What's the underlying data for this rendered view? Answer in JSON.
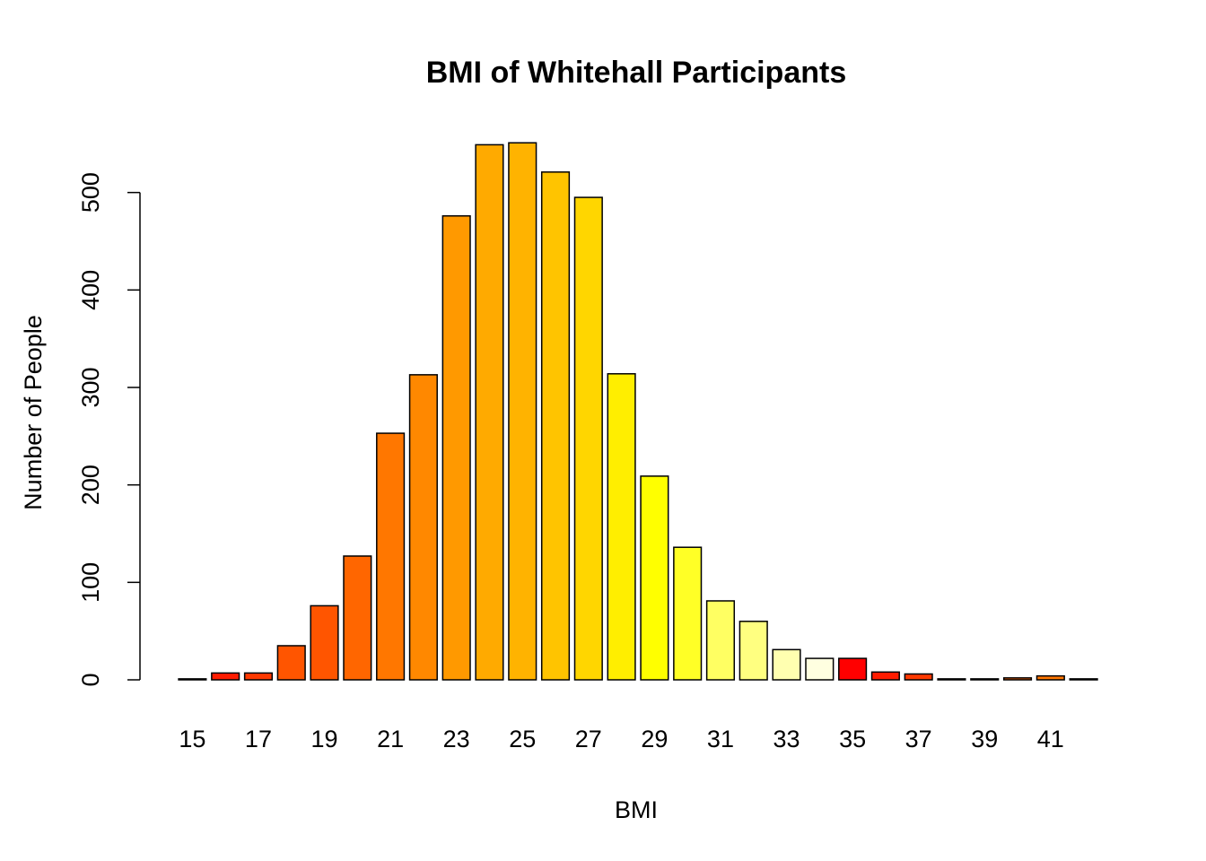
{
  "chart_data": {
    "type": "bar",
    "title": "BMI of Whitehall Participants",
    "xlabel": "BMI",
    "ylabel": "Number of People",
    "ylim": [
      0,
      560
    ],
    "grid": false,
    "legend": "none",
    "categories": [
      "15",
      "16",
      "17",
      "18",
      "19",
      "20",
      "21",
      "22",
      "23",
      "24",
      "25",
      "26",
      "27",
      "28",
      "29",
      "30",
      "31",
      "32",
      "33",
      "34",
      "35",
      "36",
      "37",
      "38",
      "39",
      "40",
      "41",
      "42"
    ],
    "values": [
      1,
      7,
      7,
      35,
      76,
      127,
      253,
      313,
      476,
      549,
      551,
      521,
      495,
      314,
      209,
      136,
      81,
      60,
      31,
      22,
      22,
      8,
      6,
      1,
      1,
      2,
      4,
      1
    ],
    "x_tick_labels": [
      "15",
      "17",
      "19",
      "21",
      "23",
      "25",
      "27",
      "29",
      "31",
      "33",
      "35",
      "37",
      "39",
      "41"
    ],
    "y_ticks": [
      0,
      100,
      200,
      300,
      400,
      500
    ],
    "colors": [
      "#FF0000",
      "#FF1C00",
      "#FF3900",
      "#FF5500",
      "#FF5500",
      "#FF6600",
      "#FF7700",
      "#FF8800",
      "#FF9900",
      "#FFAA00",
      "#FFB300",
      "#FFC400",
      "#FFD600",
      "#FFEE00",
      "#FFFF00",
      "#FFFF26",
      "#FFFF62",
      "#FFFF80",
      "#FFFFB0",
      "#FFFFE0",
      "#FF0000",
      "#FF1C00",
      "#FF3900",
      "#FF5500",
      "#FF5500",
      "#FF6600",
      "#FF7700",
      "#FF8800"
    ]
  }
}
